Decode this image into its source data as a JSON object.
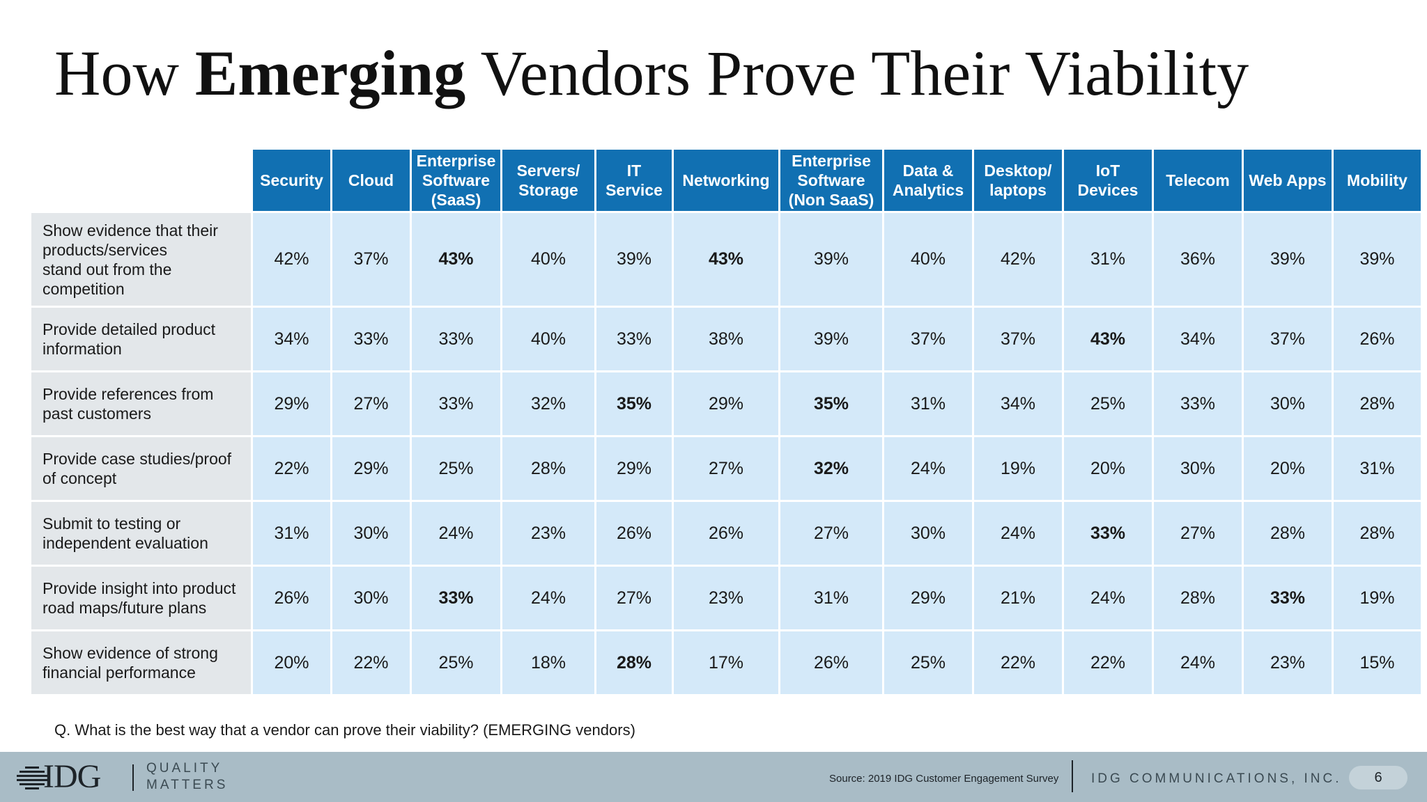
{
  "title": {
    "prefix": "How ",
    "emphasis": "Emerging",
    "suffix": " Vendors Prove Their Viability"
  },
  "chart_data": {
    "type": "table",
    "columns": [
      [
        "Security"
      ],
      [
        "Cloud"
      ],
      [
        "Enterprise",
        "Software",
        "(SaaS)"
      ],
      [
        "Servers/",
        "Storage"
      ],
      [
        "IT",
        "Service"
      ],
      [
        "Networking"
      ],
      [
        "Enterprise",
        "Software",
        "(Non SaaS)"
      ],
      [
        "Data &",
        "Analytics"
      ],
      [
        "Desktop/",
        "laptops"
      ],
      [
        "IoT",
        "Devices"
      ],
      [
        "Telecom"
      ],
      [
        "Web Apps"
      ],
      [
        "Mobility"
      ]
    ],
    "rows": [
      {
        "label": [
          "Show evidence that their",
          "products/services",
          "stand out from the",
          "competition"
        ],
        "values": [
          "42%",
          "37%",
          "43%",
          "40%",
          "39%",
          "43%",
          "39%",
          "40%",
          "42%",
          "31%",
          "36%",
          "39%",
          "39%"
        ],
        "bold": [
          2,
          5
        ]
      },
      {
        "label": [
          "Provide detailed product",
          "information"
        ],
        "values": [
          "34%",
          "33%",
          "33%",
          "40%",
          "33%",
          "38%",
          "39%",
          "37%",
          "37%",
          "43%",
          "34%",
          "37%",
          "26%"
        ],
        "bold": [
          9
        ]
      },
      {
        "label": [
          "Provide references from",
          "past customers"
        ],
        "values": [
          "29%",
          "27%",
          "33%",
          "32%",
          "35%",
          "29%",
          "35%",
          "31%",
          "34%",
          "25%",
          "33%",
          "30%",
          "28%"
        ],
        "bold": [
          4,
          6
        ]
      },
      {
        "label": [
          "Provide case studies/proof",
          "of concept"
        ],
        "values": [
          "22%",
          "29%",
          "25%",
          "28%",
          "29%",
          "27%",
          "32%",
          "24%",
          "19%",
          "20%",
          "30%",
          "20%",
          "31%"
        ],
        "bold": [
          6
        ]
      },
      {
        "label": [
          "Submit to testing or",
          "independent evaluation"
        ],
        "values": [
          "31%",
          "30%",
          "24%",
          "23%",
          "26%",
          "26%",
          "27%",
          "30%",
          "24%",
          "33%",
          "27%",
          "28%",
          "28%"
        ],
        "bold": [
          9
        ]
      },
      {
        "label": [
          "Provide insight into product",
          "road maps/future plans"
        ],
        "values": [
          "26%",
          "30%",
          "33%",
          "24%",
          "27%",
          "23%",
          "31%",
          "29%",
          "21%",
          "24%",
          "28%",
          "33%",
          "19%"
        ],
        "bold": [
          2,
          11
        ]
      },
      {
        "label": [
          "Show evidence of strong",
          "financial performance"
        ],
        "values": [
          "20%",
          "22%",
          "25%",
          "18%",
          "28%",
          "17%",
          "26%",
          "25%",
          "22%",
          "22%",
          "24%",
          "23%",
          "15%"
        ],
        "bold": [
          4
        ]
      }
    ]
  },
  "question": "Q. What is the best way that a vendor can prove their viability? (EMERGING vendors)",
  "footer": {
    "logo": "IDG",
    "tagline": [
      "QUALITY",
      "MATTERS"
    ],
    "source": "Source: 2019 IDG Customer Engagement Survey",
    "company": "IDG COMMUNICATIONS, INC.",
    "page_number": "6"
  },
  "colors": {
    "header": "#1170b2",
    "cell": "#d4e9f9",
    "row_label": "#e3e7ea",
    "footer": "#a9bcc6"
  }
}
